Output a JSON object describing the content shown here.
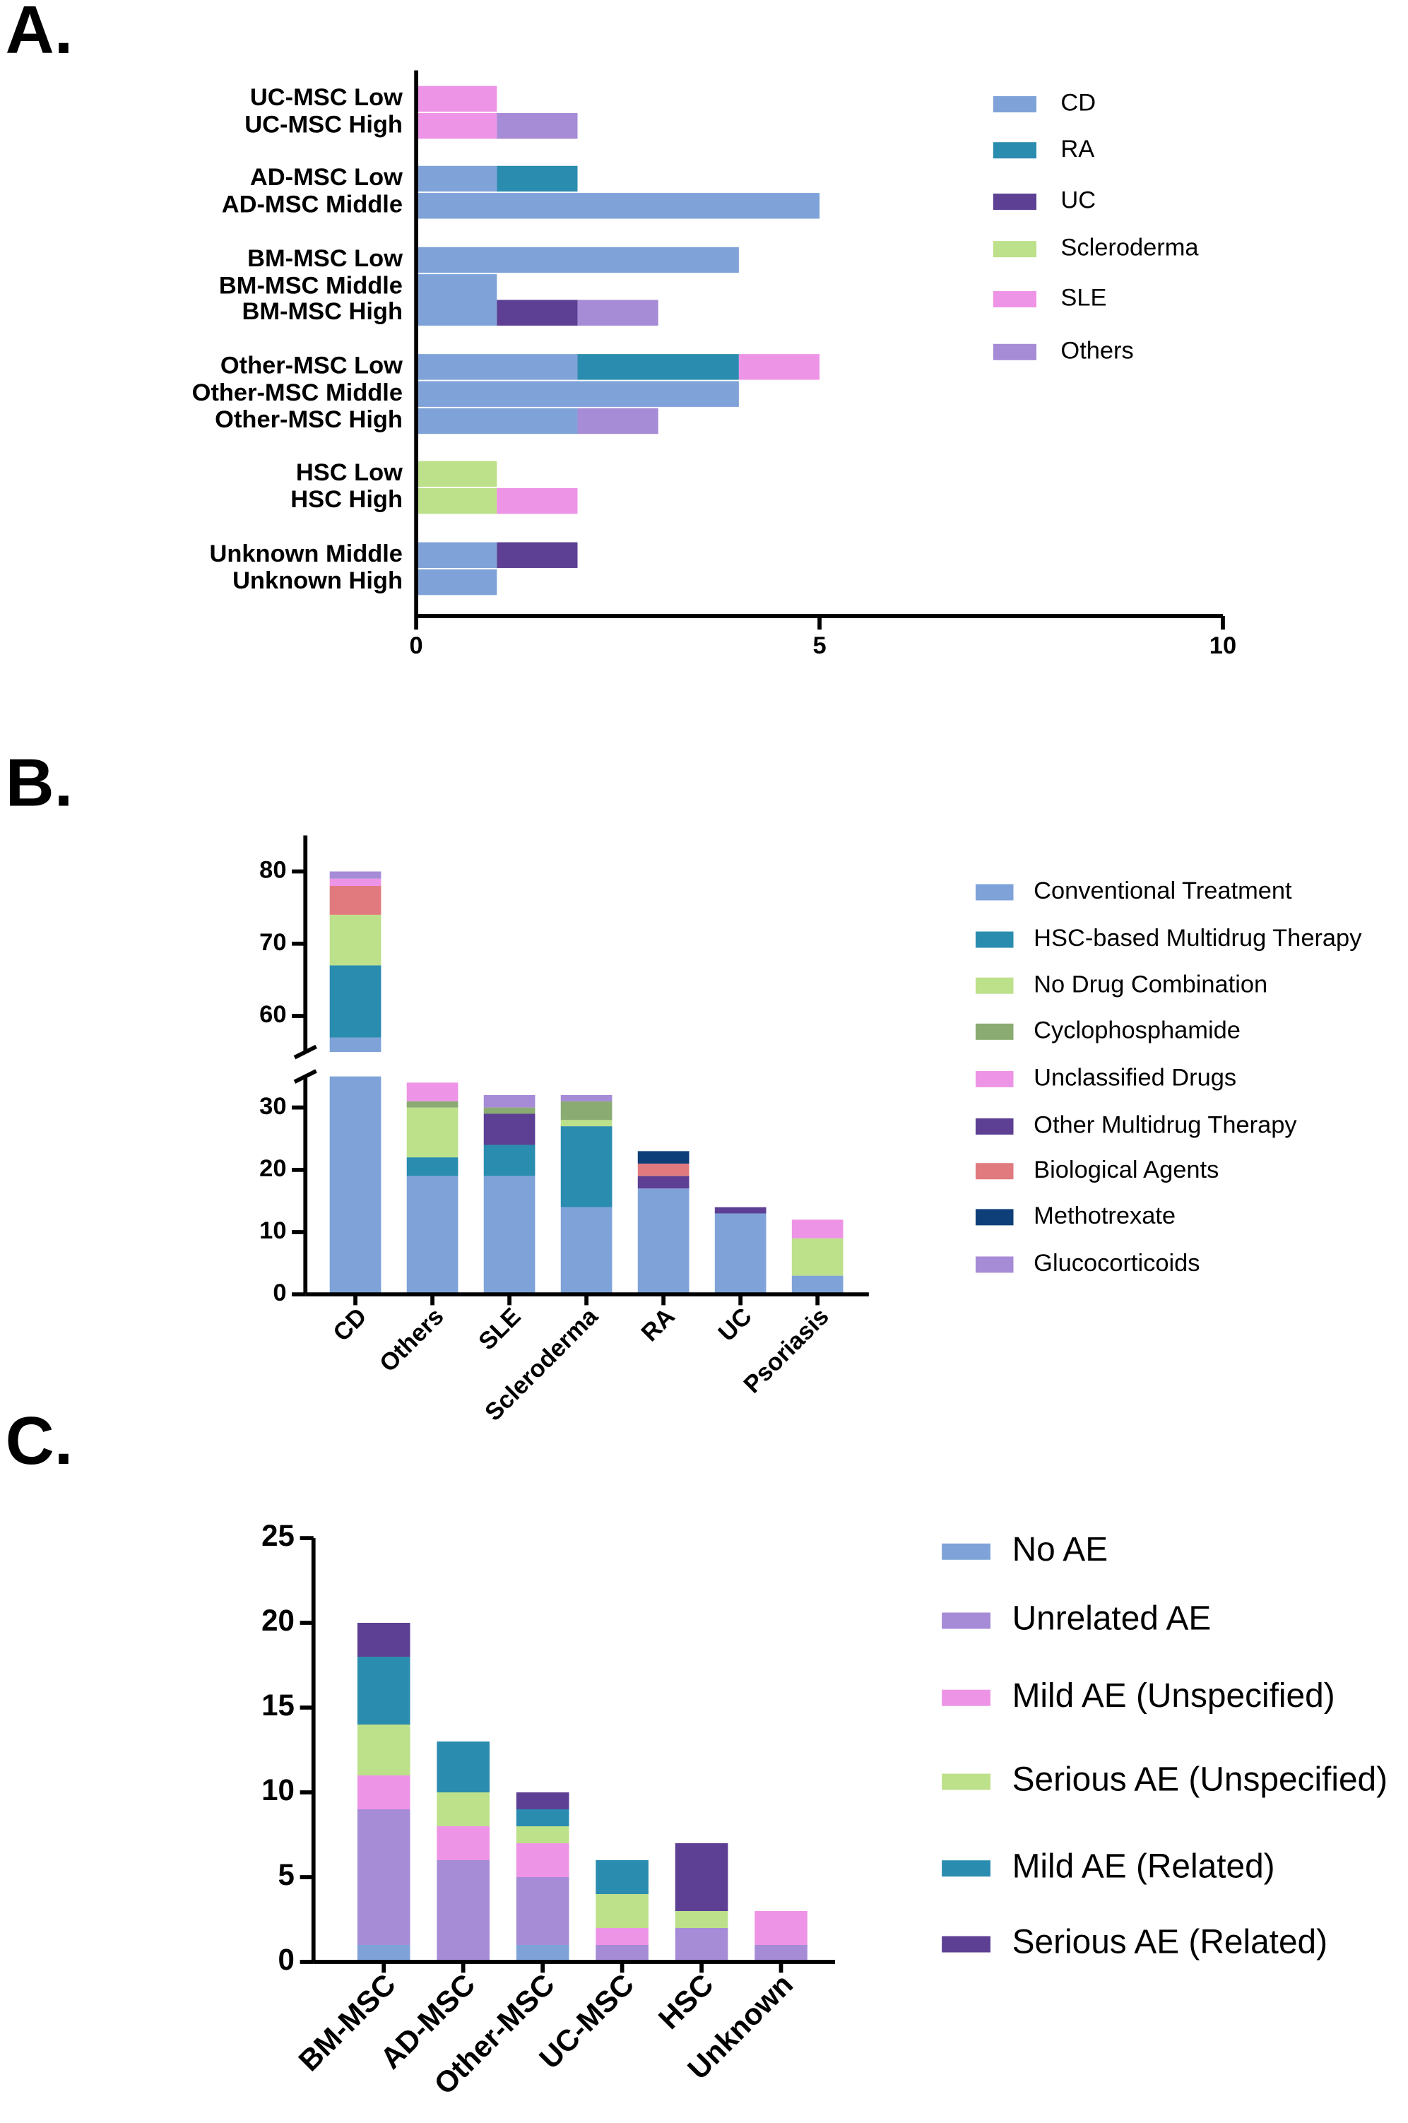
{
  "chart_data": [
    {
      "type": "hbar_stacked",
      "panel_label": "A.",
      "categories": [
        "UC-MSC Low",
        "UC-MSC High",
        "AD-MSC Low",
        "AD-MSC Middle",
        "BM-MSC Low",
        "BM-MSC Middle",
        "BM-MSC High",
        "Other-MSC Low",
        "Other-MSC Middle",
        "Other-MSC High",
        "HSC Low",
        "HSC High",
        "Unknown Middle",
        "Unknown High"
      ],
      "series": [
        {
          "name": "CD",
          "color": "#7fa3d8",
          "values": [
            0,
            0,
            1,
            5,
            4,
            1,
            1,
            2,
            4,
            2,
            0,
            0,
            1,
            1
          ]
        },
        {
          "name": "RA",
          "color": "#2a8caf",
          "values": [
            0,
            0,
            1,
            0,
            0,
            0,
            0,
            2,
            0,
            0,
            0,
            0,
            0,
            0
          ]
        },
        {
          "name": "UC",
          "color": "#5d3f94",
          "values": [
            0,
            0,
            0,
            0,
            0,
            0,
            1,
            0,
            0,
            0,
            0,
            0,
            1,
            0
          ]
        },
        {
          "name": "Scleroderma",
          "color": "#bde08a",
          "values": [
            0,
            0,
            0,
            0,
            0,
            0,
            0,
            0,
            0,
            0,
            1,
            1,
            0,
            0
          ]
        },
        {
          "name": "SLE",
          "color": "#ee94e6",
          "values": [
            1,
            1,
            0,
            0,
            0,
            0,
            0,
            1,
            0,
            0,
            0,
            1,
            0,
            0
          ]
        },
        {
          "name": "Others",
          "color": "#a68bd6",
          "values": [
            0,
            1,
            0,
            0,
            0,
            0,
            1,
            0,
            0,
            1,
            0,
            0,
            0,
            0
          ]
        }
      ],
      "xlim": [
        0,
        10
      ],
      "xticks": [
        0,
        5,
        10
      ]
    },
    {
      "type": "bar_stacked",
      "panel_label": "B.",
      "categories": [
        "CD",
        "Others",
        "SLE",
        "Scleroderma",
        "RA",
        "UC",
        "Psoriasis"
      ],
      "series": [
        {
          "name": "Conventional Treatment",
          "color": "#7fa3d8",
          "values": [
            57,
            19,
            19,
            14,
            17,
            13,
            3
          ]
        },
        {
          "name": "HSC-based Multidrug Therapy",
          "color": "#2a8caf",
          "values": [
            10,
            3,
            5,
            13,
            0,
            0,
            0
          ]
        },
        {
          "name": "No Drug Combination",
          "color": "#bde08a",
          "values": [
            7,
            8,
            0,
            1,
            0,
            0,
            6
          ]
        },
        {
          "name": "Cyclophosphamide",
          "color": "#8aab72",
          "values": [
            0,
            1,
            1,
            3,
            0,
            0,
            0
          ]
        },
        {
          "name": "Unclassified Drugs",
          "color": "#ee94e6",
          "values": [
            1,
            3,
            0,
            0,
            0,
            0,
            3
          ]
        },
        {
          "name": "Other Multidrug Therapy",
          "color": "#5d3f94",
          "values": [
            0,
            0,
            5,
            0,
            2,
            1,
            0
          ]
        },
        {
          "name": "Biological Agents",
          "color": "#e07a7e",
          "values": [
            4,
            0,
            0,
            0,
            2,
            0,
            0
          ]
        },
        {
          "name": "Methotrexate",
          "color": "#0f3f78",
          "values": [
            0,
            0,
            0,
            0,
            2,
            0,
            0
          ]
        },
        {
          "name": "Glucocorticoids",
          "color": "#a68bd6",
          "values": [
            1,
            0,
            2,
            1,
            0,
            0,
            0
          ]
        }
      ],
      "ylim": [
        0,
        85
      ],
      "ybreak": [
        35,
        55
      ],
      "yticks": [
        0,
        10,
        20,
        30,
        60,
        70,
        80
      ]
    },
    {
      "type": "bar_stacked",
      "panel_label": "C.",
      "categories": [
        "BM-MSC",
        "AD-MSC",
        "Other-MSC",
        "UC-MSC",
        "HSC",
        "Unknown"
      ],
      "series": [
        {
          "name": "No AE",
          "color": "#7fa3d8",
          "values": [
            1,
            0,
            1,
            0,
            0,
            0
          ]
        },
        {
          "name": "Unrelated AE",
          "color": "#a68bd6",
          "values": [
            8,
            6,
            4,
            1,
            2,
            1
          ]
        },
        {
          "name": "Mild AE (Unspecified)",
          "color": "#ee94e6",
          "values": [
            2,
            2,
            2,
            1,
            0,
            2
          ]
        },
        {
          "name": "Serious AE (Unspecified)",
          "color": "#bde08a",
          "values": [
            3,
            2,
            1,
            2,
            1,
            0
          ]
        },
        {
          "name": "Mild AE (Related)",
          "color": "#2a8caf",
          "values": [
            4,
            3,
            1,
            2,
            0,
            0
          ]
        },
        {
          "name": "Serious AE (Related)",
          "color": "#5d3f94",
          "values": [
            2,
            0,
            1,
            0,
            4,
            0
          ]
        }
      ],
      "ylim": [
        0,
        25
      ],
      "yticks": [
        0,
        5,
        10,
        15,
        20,
        25
      ]
    }
  ]
}
